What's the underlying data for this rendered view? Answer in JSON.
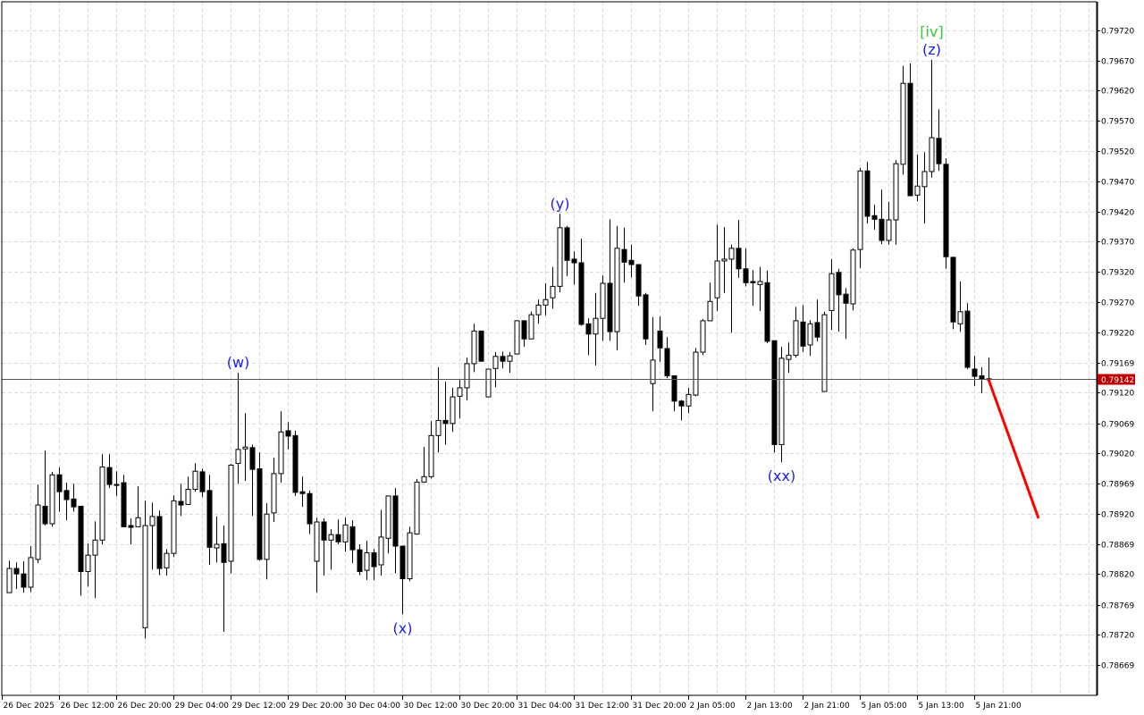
{
  "chart_data": {
    "type": "candlestick",
    "title": "",
    "xlabel": "",
    "ylabel": "",
    "ylim": [
      0.78619,
      0.79767
    ],
    "grid": true,
    "colors": {
      "bull_fill": "#ffffff",
      "bear_fill": "#000000",
      "candle_outline": "#000000",
      "grid": "#d9d9d9",
      "current_price_line": "#555555",
      "current_price_tag": "#c00000",
      "wave_label": "#1a1aff",
      "major_wave_label": "#33cc33",
      "forecast": "#ff0000"
    },
    "y_ticks": [
      "0.79720",
      "0.79670",
      "0.79620",
      "0.79570",
      "0.79520",
      "0.79470",
      "0.79420",
      "0.79370",
      "0.79320",
      "0.79270",
      "0.79220",
      "0.79169",
      "0.79120",
      "0.79069",
      "0.79020",
      "0.78969",
      "0.78920",
      "0.78869",
      "0.78820",
      "0.78769",
      "0.78720",
      "0.78669"
    ],
    "x_ticks": [
      {
        "bar": 0,
        "label": "26 Dec 2025"
      },
      {
        "bar": 8,
        "label": "26 Dec 12:00"
      },
      {
        "bar": 16,
        "label": "26 Dec 20:00"
      },
      {
        "bar": 24,
        "label": "29 Dec 04:00"
      },
      {
        "bar": 32,
        "label": "29 Dec 12:00"
      },
      {
        "bar": 40,
        "label": "29 Dec 20:00"
      },
      {
        "bar": 48,
        "label": "30 Dec 04:00"
      },
      {
        "bar": 56,
        "label": "30 Dec 12:00"
      },
      {
        "bar": 64,
        "label": "30 Dec 20:00"
      },
      {
        "bar": 72,
        "label": "31 Dec 04:00"
      },
      {
        "bar": 80,
        "label": "31 Dec 12:00"
      },
      {
        "bar": 88,
        "label": "31 Dec 20:00"
      },
      {
        "bar": 96,
        "label": "2 Jan 05:00"
      },
      {
        "bar": 104,
        "label": "2 Jan 13:00"
      },
      {
        "bar": 112,
        "label": "2 Jan 21:00"
      },
      {
        "bar": 120,
        "label": "5 Jan 05:00"
      },
      {
        "bar": 128,
        "label": "5 Jan 13:00"
      },
      {
        "bar": 136,
        "label": "5 Jan 21:00"
      }
    ],
    "current_price": "0.79142",
    "ohlc_columns": [
      "open",
      "high",
      "low",
      "close"
    ],
    "candles": [
      [
        0.78789,
        0.78842,
        0.78789,
        0.78829
      ],
      [
        0.78829,
        0.78839,
        0.78795,
        0.7882
      ],
      [
        0.7882,
        0.78841,
        0.78789,
        0.78798
      ],
      [
        0.78798,
        0.78866,
        0.7879,
        0.78847
      ],
      [
        0.78844,
        0.78968,
        0.78838,
        0.78934
      ],
      [
        0.78932,
        0.79024,
        0.789,
        0.78903
      ],
      [
        0.78903,
        0.78989,
        0.78898,
        0.78984
      ],
      [
        0.78984,
        0.78996,
        0.78923,
        0.78956
      ],
      [
        0.78958,
        0.78971,
        0.78909,
        0.78943
      ],
      [
        0.78944,
        0.78969,
        0.78923,
        0.78931
      ],
      [
        0.78932,
        0.78932,
        0.78784,
        0.78824
      ],
      [
        0.78824,
        0.7887,
        0.78799,
        0.78851
      ],
      [
        0.78851,
        0.78907,
        0.7878,
        0.78876
      ],
      [
        0.78876,
        0.79018,
        0.78869,
        0.78997
      ],
      [
        0.78996,
        0.79018,
        0.78962,
        0.78968
      ],
      [
        0.78968,
        0.7899,
        0.78949,
        0.78968
      ],
      [
        0.78971,
        0.78984,
        0.78898,
        0.78898
      ],
      [
        0.789,
        0.78912,
        0.78869,
        0.78897
      ],
      [
        0.78898,
        0.78965,
        0.78898,
        0.78913
      ],
      [
        0.78731,
        0.78941,
        0.78713,
        0.789
      ],
      [
        0.789,
        0.78938,
        0.78827,
        0.78915
      ],
      [
        0.78915,
        0.78925,
        0.78818,
        0.78829
      ],
      [
        0.7883,
        0.78861,
        0.78817,
        0.78854
      ],
      [
        0.78854,
        0.7895,
        0.78848,
        0.78941
      ],
      [
        0.7894,
        0.78969,
        0.78916,
        0.78934
      ],
      [
        0.78935,
        0.78981,
        0.78935,
        0.7896
      ],
      [
        0.7896,
        0.79003,
        0.78956,
        0.7899
      ],
      [
        0.78989,
        0.78994,
        0.78947,
        0.78956
      ],
      [
        0.78958,
        0.78984,
        0.78835,
        0.78864
      ],
      [
        0.78863,
        0.78915,
        0.78839,
        0.78869
      ],
      [
        0.7887,
        0.789,
        0.78724,
        0.78839
      ],
      [
        0.78841,
        0.79002,
        0.78821,
        0.79
      ],
      [
        0.79003,
        0.79153,
        0.78969,
        0.79026
      ],
      [
        0.79027,
        0.79086,
        0.78974,
        0.7903
      ],
      [
        0.79029,
        0.79034,
        0.78916,
        0.78993
      ],
      [
        0.78994,
        0.79021,
        0.78842,
        0.78844
      ],
      [
        0.78844,
        0.78937,
        0.78811,
        0.78919
      ],
      [
        0.78921,
        0.79012,
        0.78906,
        0.78986
      ],
      [
        0.78986,
        0.79089,
        0.78971,
        0.79055
      ],
      [
        0.79057,
        0.79071,
        0.79026,
        0.79048
      ],
      [
        0.79049,
        0.79057,
        0.78949,
        0.78955
      ],
      [
        0.78956,
        0.78981,
        0.78931,
        0.78953
      ],
      [
        0.78953,
        0.78958,
        0.78886,
        0.78903
      ],
      [
        0.78841,
        0.78913,
        0.78789,
        0.78906
      ],
      [
        0.78906,
        0.78912,
        0.78817,
        0.78876
      ],
      [
        0.78876,
        0.78894,
        0.78827,
        0.78885
      ],
      [
        0.78885,
        0.7891,
        0.78869,
        0.78873
      ],
      [
        0.78873,
        0.78913,
        0.78857,
        0.78901
      ],
      [
        0.78898,
        0.78909,
        0.78838,
        0.7886
      ],
      [
        0.7886,
        0.78869,
        0.78818,
        0.78824
      ],
      [
        0.78826,
        0.78875,
        0.7881,
        0.78855
      ],
      [
        0.78855,
        0.78861,
        0.7881,
        0.78832
      ],
      [
        0.78835,
        0.78926,
        0.78817,
        0.78881
      ],
      [
        0.78879,
        0.78949,
        0.78854,
        0.78949
      ],
      [
        0.78949,
        0.78962,
        0.78821,
        0.78866
      ],
      [
        0.78866,
        0.78866,
        0.78753,
        0.78812
      ],
      [
        0.78812,
        0.78898,
        0.78808,
        0.78888
      ],
      [
        0.78886,
        0.78977,
        0.78885,
        0.78972
      ],
      [
        0.78972,
        0.7903,
        0.78971,
        0.78981
      ],
      [
        0.78981,
        0.79073,
        0.78978,
        0.79049
      ],
      [
        0.79049,
        0.79162,
        0.79021,
        0.79074
      ],
      [
        0.79074,
        0.79138,
        0.79034,
        0.79069
      ],
      [
        0.79069,
        0.79128,
        0.79055,
        0.79113
      ],
      [
        0.79114,
        0.79141,
        0.79077,
        0.79128
      ],
      [
        0.79128,
        0.79178,
        0.79107,
        0.79168
      ],
      [
        0.79168,
        0.79234,
        0.79154,
        0.79222
      ],
      [
        0.79222,
        0.79222,
        0.79172,
        0.79172
      ],
      [
        0.79113,
        0.79159,
        0.79113,
        0.79159
      ],
      [
        0.7916,
        0.79187,
        0.79129,
        0.7918
      ],
      [
        0.7918,
        0.79188,
        0.7916,
        0.79172
      ],
      [
        0.79172,
        0.79187,
        0.79153,
        0.79181
      ],
      [
        0.79184,
        0.7924,
        0.79184,
        0.79239
      ],
      [
        0.79239,
        0.7924,
        0.79196,
        0.79209
      ],
      [
        0.79209,
        0.79254,
        0.79209,
        0.79249
      ],
      [
        0.79249,
        0.79274,
        0.79234,
        0.79265
      ],
      [
        0.79265,
        0.79301,
        0.79248,
        0.79274
      ],
      [
        0.79277,
        0.79328,
        0.79259,
        0.79296
      ],
      [
        0.79296,
        0.79416,
        0.79286,
        0.79393
      ],
      [
        0.79393,
        0.79396,
        0.79313,
        0.79339
      ],
      [
        0.79341,
        0.79354,
        0.79299,
        0.79335
      ],
      [
        0.79335,
        0.79375,
        0.79231,
        0.79233
      ],
      [
        0.79234,
        0.79243,
        0.79182,
        0.79217
      ],
      [
        0.79217,
        0.79285,
        0.79165,
        0.79243
      ],
      [
        0.79243,
        0.79314,
        0.79206,
        0.79301
      ],
      [
        0.79301,
        0.79407,
        0.79206,
        0.79221
      ],
      [
        0.79221,
        0.79396,
        0.7919,
        0.79359
      ],
      [
        0.79357,
        0.79393,
        0.79302,
        0.79336
      ],
      [
        0.79339,
        0.79365,
        0.79311,
        0.79332
      ],
      [
        0.79332,
        0.79332,
        0.79264,
        0.7928
      ],
      [
        0.79282,
        0.79285,
        0.79199,
        0.79209
      ],
      [
        0.79135,
        0.79245,
        0.79089,
        0.79174
      ],
      [
        0.79222,
        0.79246,
        0.79171,
        0.79194
      ],
      [
        0.79193,
        0.79212,
        0.79144,
        0.79148
      ],
      [
        0.79148,
        0.79148,
        0.79089,
        0.79106
      ],
      [
        0.79106,
        0.79108,
        0.79074,
        0.79098
      ],
      [
        0.79098,
        0.79128,
        0.79086,
        0.79117
      ],
      [
        0.79116,
        0.79194,
        0.79114,
        0.79187
      ],
      [
        0.79187,
        0.79242,
        0.79182,
        0.79239
      ],
      [
        0.79239,
        0.79302,
        0.79239,
        0.79271
      ],
      [
        0.79277,
        0.79398,
        0.79255,
        0.79338
      ],
      [
        0.79338,
        0.79394,
        0.79285,
        0.79341
      ],
      [
        0.79341,
        0.79365,
        0.79219,
        0.79359
      ],
      [
        0.79359,
        0.79406,
        0.7931,
        0.79325
      ],
      [
        0.79325,
        0.79359,
        0.79296,
        0.79302
      ],
      [
        0.79304,
        0.79323,
        0.79264,
        0.79302
      ],
      [
        0.79299,
        0.79328,
        0.79255,
        0.79304
      ],
      [
        0.79302,
        0.79322,
        0.79202,
        0.79205
      ],
      [
        0.79206,
        0.79206,
        0.79021,
        0.79034
      ],
      [
        0.79034,
        0.79196,
        0.79005,
        0.79177
      ],
      [
        0.79175,
        0.79203,
        0.79153,
        0.79182
      ],
      [
        0.79182,
        0.79262,
        0.79178,
        0.79239
      ],
      [
        0.79237,
        0.79265,
        0.79187,
        0.79197
      ],
      [
        0.79199,
        0.7924,
        0.79181,
        0.79234
      ],
      [
        0.79236,
        0.79274,
        0.79205,
        0.79212
      ],
      [
        0.79122,
        0.79254,
        0.79122,
        0.79249
      ],
      [
        0.79256,
        0.79341,
        0.79224,
        0.79317
      ],
      [
        0.79319,
        0.79325,
        0.79221,
        0.79282
      ],
      [
        0.79283,
        0.79293,
        0.79209,
        0.79268
      ],
      [
        0.79267,
        0.79359,
        0.79256,
        0.79356
      ],
      [
        0.79357,
        0.79492,
        0.79326,
        0.79487
      ],
      [
        0.79487,
        0.79502,
        0.794,
        0.79412
      ],
      [
        0.79413,
        0.79431,
        0.7939,
        0.79407
      ],
      [
        0.79407,
        0.79456,
        0.79366,
        0.79372
      ],
      [
        0.79372,
        0.79436,
        0.79365,
        0.79406
      ],
      [
        0.79406,
        0.79505,
        0.79365,
        0.79499
      ],
      [
        0.79498,
        0.79661,
        0.79481,
        0.79632
      ],
      [
        0.79632,
        0.79665,
        0.79446,
        0.79446
      ],
      [
        0.79447,
        0.79514,
        0.79437,
        0.79462
      ],
      [
        0.79461,
        0.79518,
        0.794,
        0.79486
      ],
      [
        0.79486,
        0.79671,
        0.79476,
        0.79542
      ],
      [
        0.79541,
        0.79589,
        0.79487,
        0.79499
      ],
      [
        0.79498,
        0.79508,
        0.79325,
        0.79345
      ],
      [
        0.79344,
        0.79345,
        0.79225,
        0.79237
      ],
      [
        0.79234,
        0.79304,
        0.79221,
        0.79254
      ],
      [
        0.79255,
        0.79268,
        0.79159,
        0.79162
      ],
      [
        0.79159,
        0.79181,
        0.79131,
        0.79147
      ],
      [
        0.79148,
        0.79162,
        0.79119,
        0.79143
      ],
      [
        0.79143,
        0.79178,
        0.7914,
        0.79142
      ]
    ],
    "wave_labels": [
      {
        "text": "(w)",
        "bar": 33,
        "anchor": "high",
        "color": "wave_label"
      },
      {
        "text": "(x)",
        "bar": 56,
        "anchor": "low",
        "color": "wave_label"
      },
      {
        "text": "(y)",
        "bar": 78,
        "anchor": "high",
        "color": "wave_label"
      },
      {
        "text": "(xx)",
        "bar": 109,
        "anchor": "low",
        "color": "wave_label"
      },
      {
        "text": "(z)",
        "bar": 130,
        "anchor": "high",
        "color": "wave_label"
      },
      {
        "text": "[iv]",
        "bar": 130,
        "anchor": "high",
        "color": "major_wave_label",
        "stack": 1
      }
    ],
    "forecast": {
      "from": {
        "bar": 138,
        "price": 0.79142
      },
      "to": {
        "bar": 145,
        "price": 0.78912
      }
    }
  }
}
